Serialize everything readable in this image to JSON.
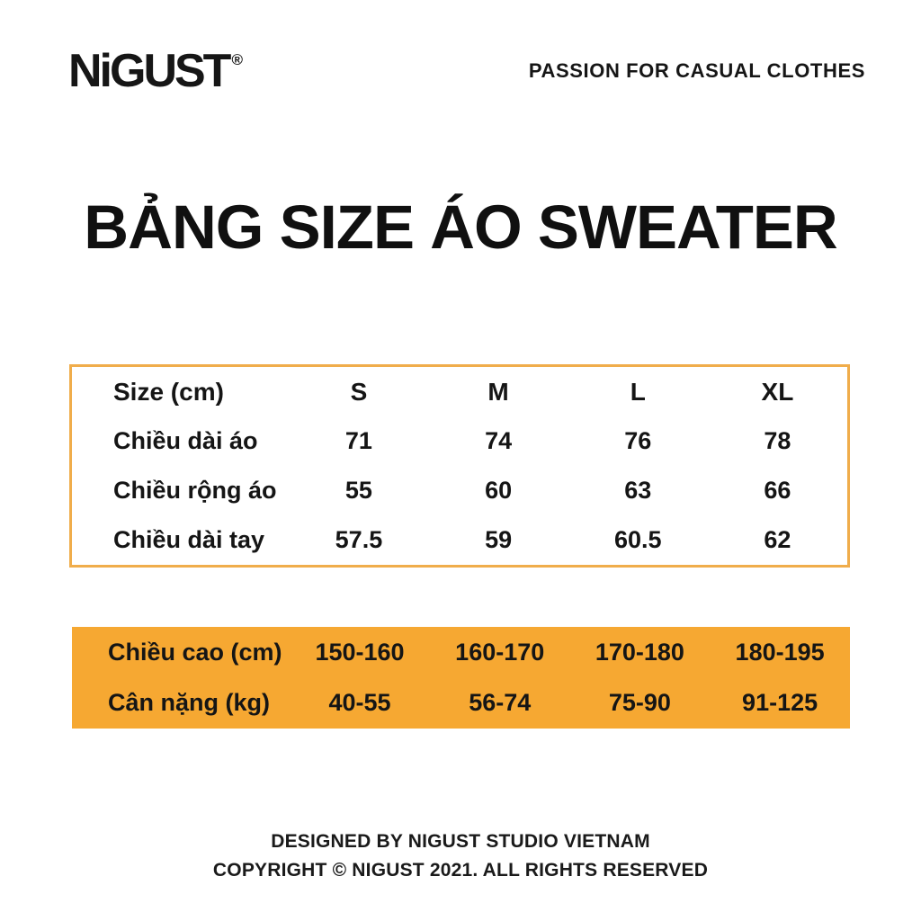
{
  "header": {
    "logo_text": "NiGUST",
    "logo_mark": "®",
    "tagline": "PASSION FOR CASUAL CLOTHES"
  },
  "title": "BẢNG SIZE ÁO SWEATER",
  "size_table": {
    "columns": [
      "Size (cm)",
      "S",
      "M",
      "L",
      "XL"
    ],
    "rows": [
      {
        "label": "Chiều dài áo",
        "values": [
          "71",
          "74",
          "76",
          "78"
        ]
      },
      {
        "label": "Chiều rộng áo",
        "values": [
          "55",
          "60",
          "63",
          "66"
        ]
      },
      {
        "label": "Chiều dài tay",
        "values": [
          "57.5",
          "59",
          "60.5",
          "62"
        ]
      }
    ],
    "border_color": "#F0AD4B"
  },
  "fit_table": {
    "rows": [
      {
        "label": "Chiều cao (cm)",
        "values": [
          "150-160",
          "160-170",
          "170-180",
          "180-195"
        ]
      },
      {
        "label": "Cân nặng (kg)",
        "values": [
          "40-55",
          "56-74",
          "75-90",
          "91-125"
        ]
      }
    ],
    "background_color": "#F6A832"
  },
  "footer": {
    "line1": "DESIGNED BY NIGUST STUDIO VIETNAM",
    "line2": "COPYRIGHT © NIGUST 2021. ALL RIGHTS RESERVED"
  }
}
